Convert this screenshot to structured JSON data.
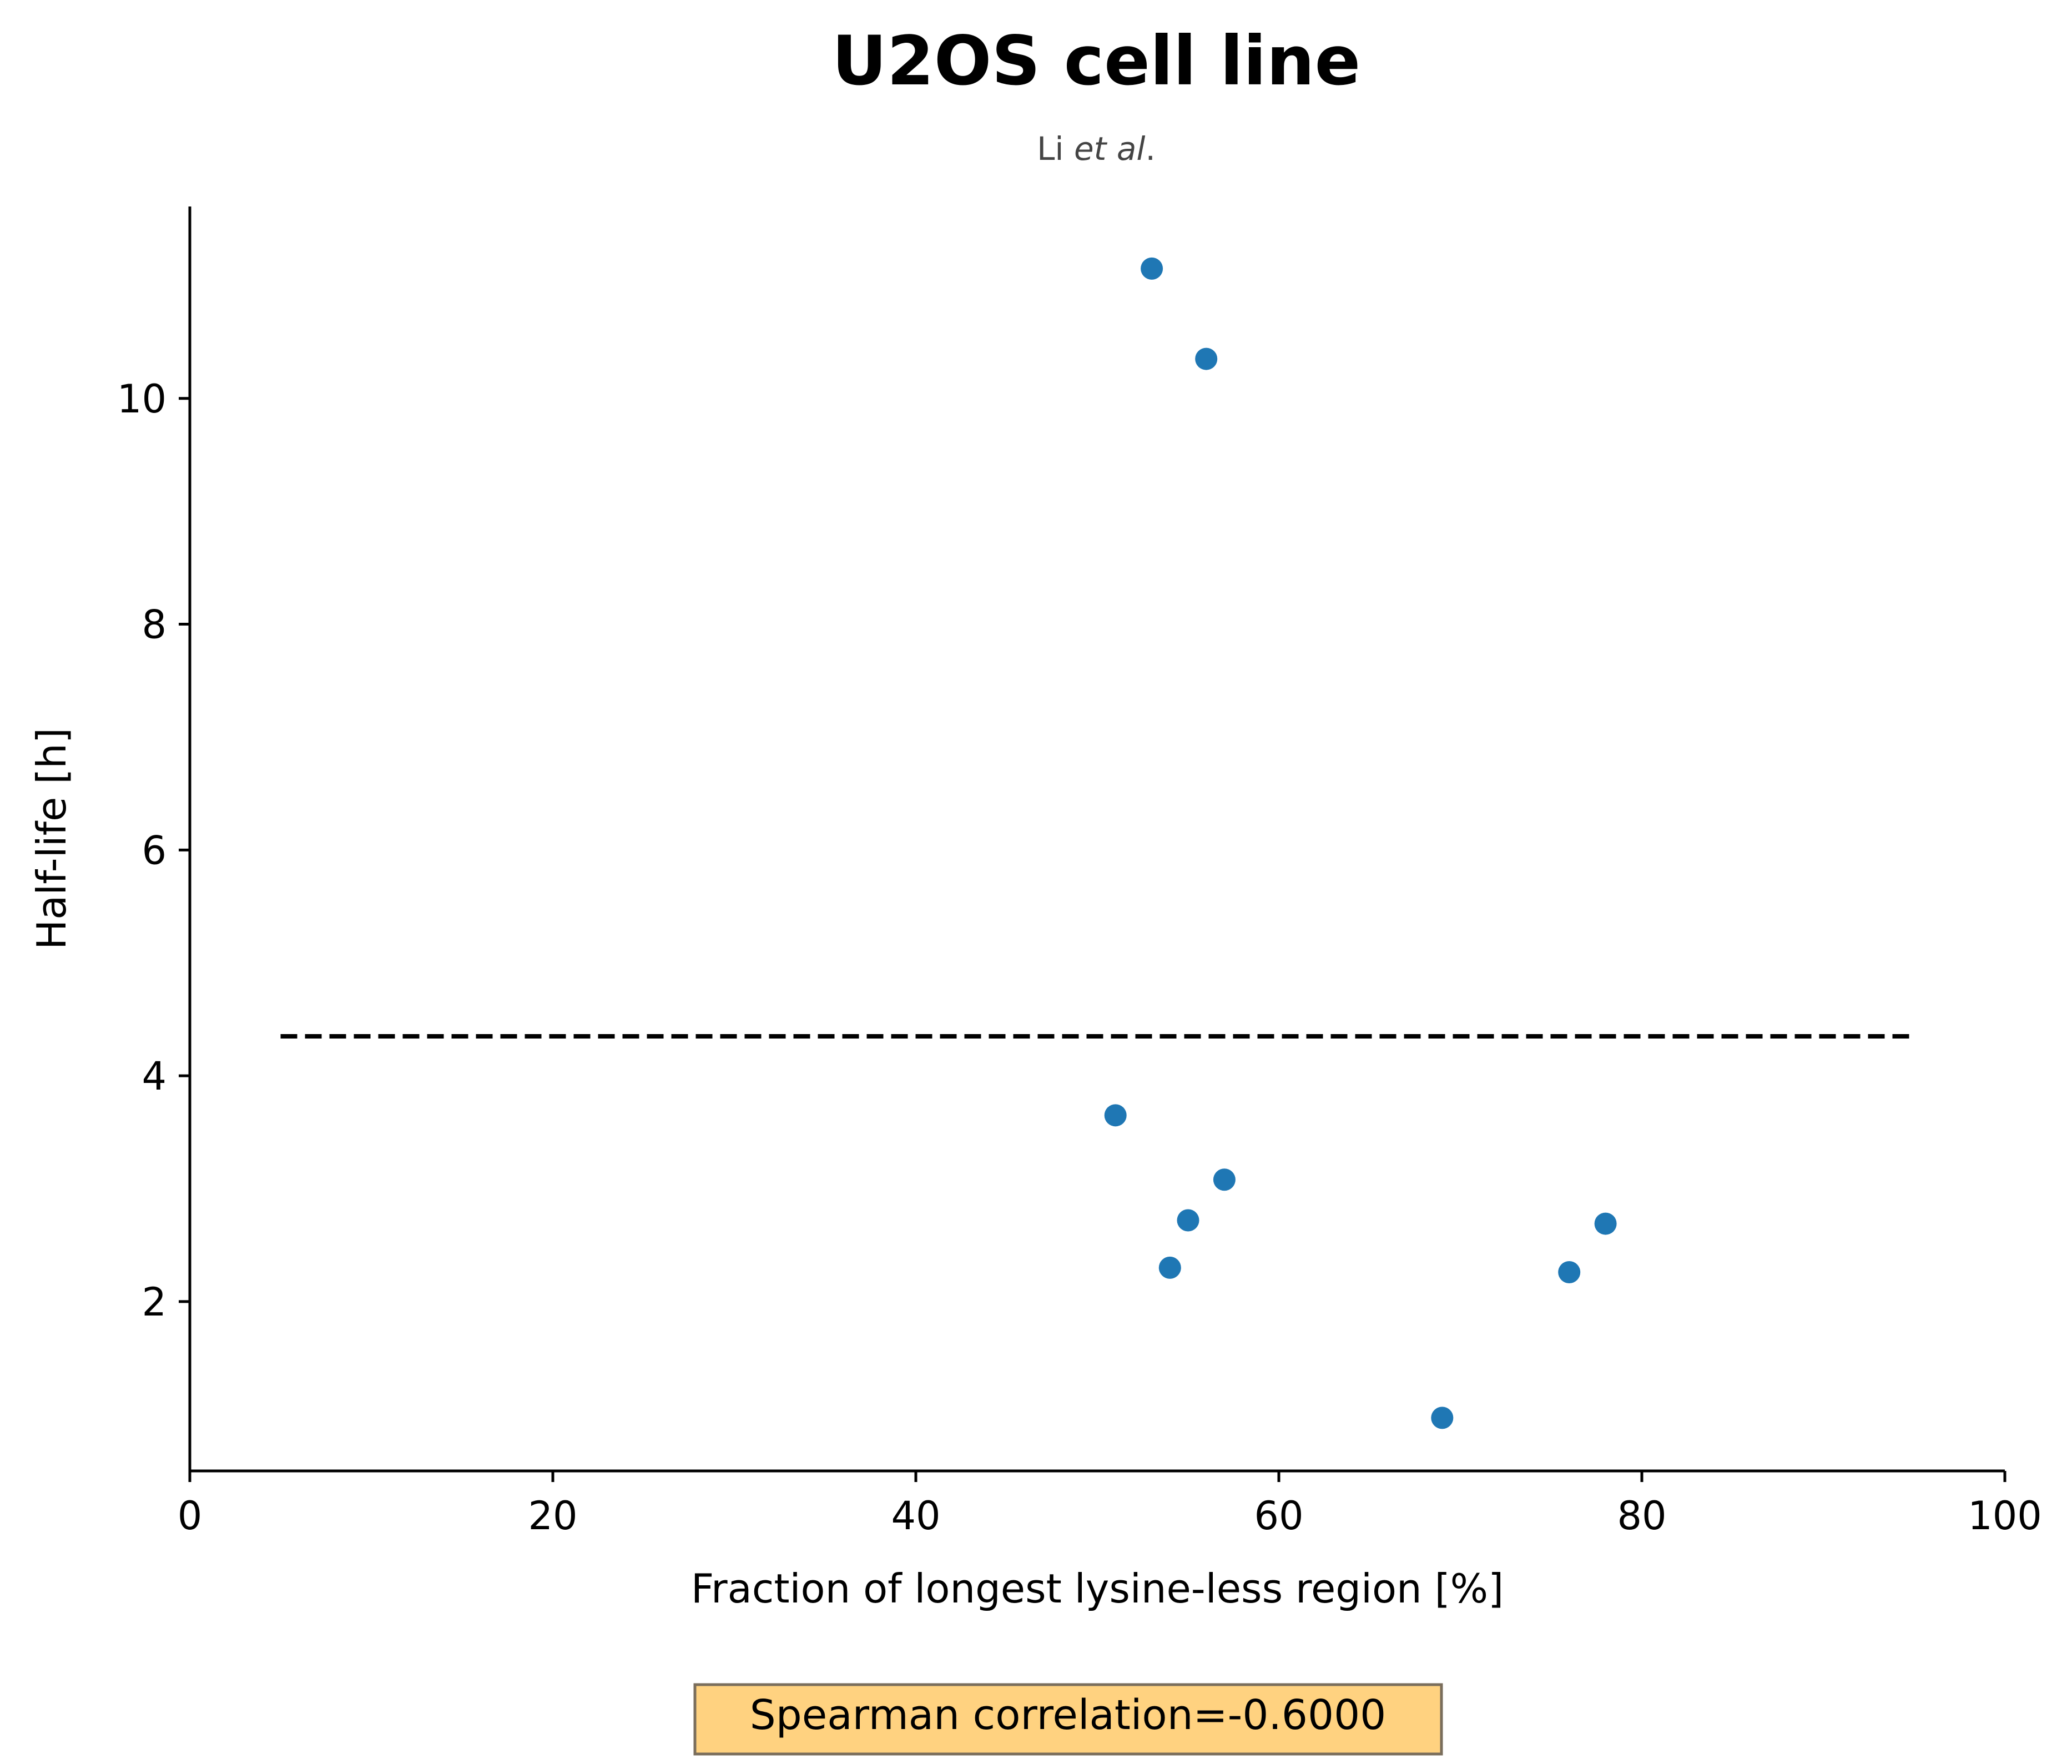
{
  "chart_data": {
    "type": "scatter",
    "title": "U2OS cell line",
    "subtitle_plain": "Li ",
    "subtitle_italic": "et al",
    "subtitle_end": ".",
    "xlabel": "Fraction of longest lysine-less region [%]",
    "ylabel": "Half-life [h]",
    "xlim": [
      0,
      100
    ],
    "ylim": [
      0.5,
      11.7
    ],
    "xticks": [
      0,
      20,
      40,
      60,
      80,
      100
    ],
    "yticks": [
      2,
      4,
      6,
      8,
      10
    ],
    "grid": false,
    "point_color": "#1f77b4",
    "points": [
      {
        "x": 53,
        "y": 11.15
      },
      {
        "x": 56,
        "y": 10.35
      },
      {
        "x": 51,
        "y": 3.65
      },
      {
        "x": 57,
        "y": 3.08
      },
      {
        "x": 55,
        "y": 2.72
      },
      {
        "x": 54,
        "y": 2.3
      },
      {
        "x": 76,
        "y": 2.26
      },
      {
        "x": 78,
        "y": 2.69
      },
      {
        "x": 69,
        "y": 0.97
      }
    ],
    "reference_line": {
      "style": "dashed",
      "color": "#000000",
      "y": 4.35,
      "x_start": 5,
      "x_end": 95
    },
    "annotation": {
      "text": "Spearman correlation=-0.6000",
      "background": "#ffd280",
      "border": "#7a6e5c"
    }
  }
}
